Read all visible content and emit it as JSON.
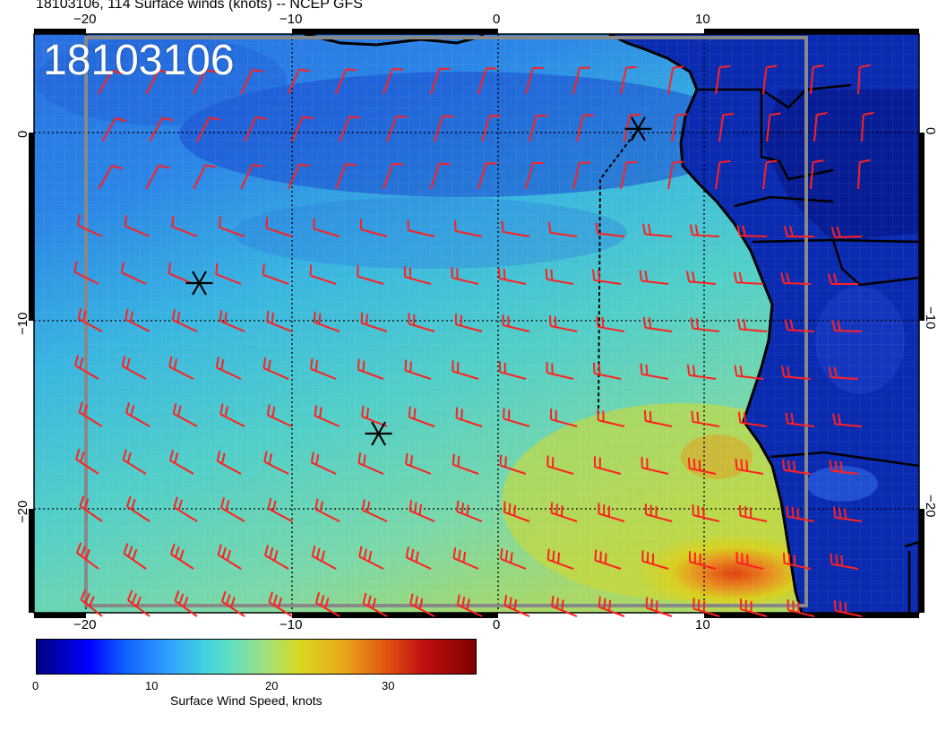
{
  "title": "18103106, 114 Surface winds (knots) -- NCEP GFS",
  "stamp": "18103106",
  "lon_ticks": [
    "−20",
    "−10",
    "0",
    "10"
  ],
  "lat_ticks": [
    "0",
    "−10",
    "−20"
  ],
  "markers": [
    {
      "name": "storm-marker-1",
      "lon": -14.5,
      "lat": -8
    },
    {
      "name": "storm-marker-2",
      "lon": -5.8,
      "lat": -16
    },
    {
      "name": "storm-marker-3",
      "lon": 6.8,
      "lat": 0.2
    }
  ],
  "colorbar": {
    "label": "Surface Wind Speed, knots",
    "ticks": [
      "0",
      "10",
      "20",
      "30"
    ],
    "range": [
      0,
      37
    ]
  },
  "colors": {
    "barb": "#ff2020",
    "land": "#0a2ab0",
    "ocean_mid": "#30a8e0"
  }
}
